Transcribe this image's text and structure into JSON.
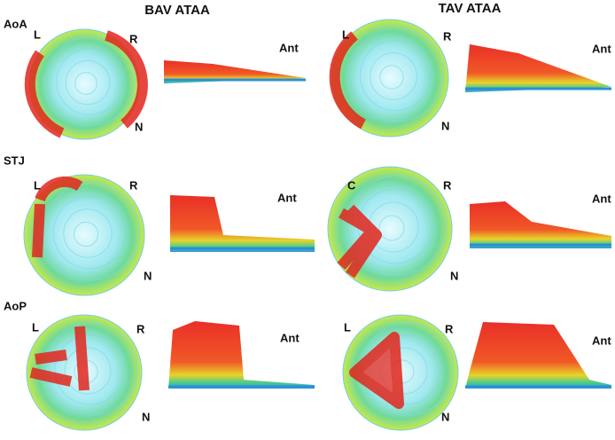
{
  "column_titles": [
    "BAV ATAA",
    "TAV ATAA"
  ],
  "row_labels": [
    "AoA",
    "STJ",
    "AoP"
  ],
  "panels": [
    {
      "top_left": "L",
      "top_right": "R",
      "bottom": "N",
      "side": "Ant"
    },
    {
      "top_left": "L",
      "top_right": "R",
      "bottom": "N",
      "side": "Ant"
    },
    {
      "top_left": "L",
      "top_right": "R",
      "bottom": "N",
      "side": "Ant"
    },
    {
      "top_left": "C",
      "top_right": "R",
      "bottom": "N",
      "side": "Ant"
    },
    {
      "top_left": "L",
      "top_right": "R",
      "bottom": "N",
      "side": "Ant"
    },
    {
      "top_left": "L",
      "top_right": "R",
      "bottom": "N",
      "side": "Ant"
    }
  ]
}
